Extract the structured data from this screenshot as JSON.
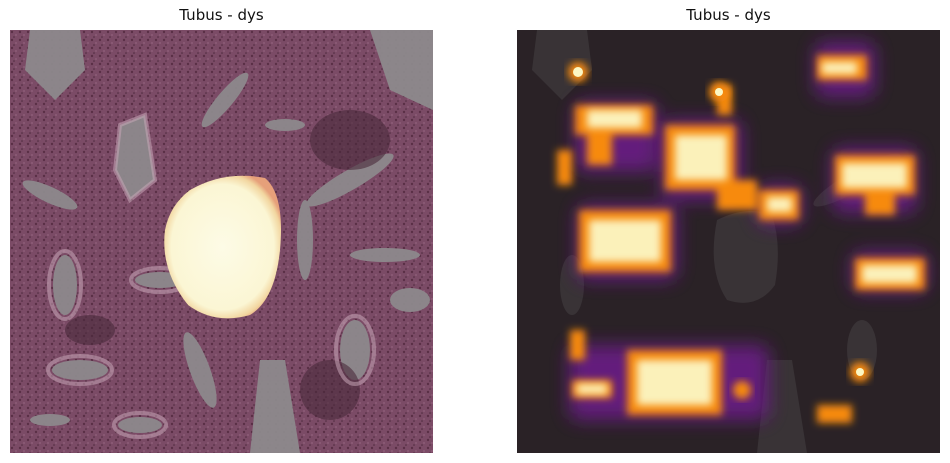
{
  "panels": [
    {
      "title": "Tubus - dys",
      "image": "histology tissue overlay with single highlighted lumen"
    },
    {
      "title": "Tubus - dys",
      "image": "histology tissue attention heatmap (inferno colormap)"
    }
  ],
  "colors": {
    "tissue_base": "#7a4a64",
    "tissue_dark": "#4a2a3a",
    "lumen_gray": "#8e8a8c",
    "heat_hot": "#fcfdbf",
    "heat_mid": "#f98c0a",
    "heat_low": "#bc3754",
    "heat_edge": "#57106e",
    "dark_bg": "#2a2226"
  }
}
